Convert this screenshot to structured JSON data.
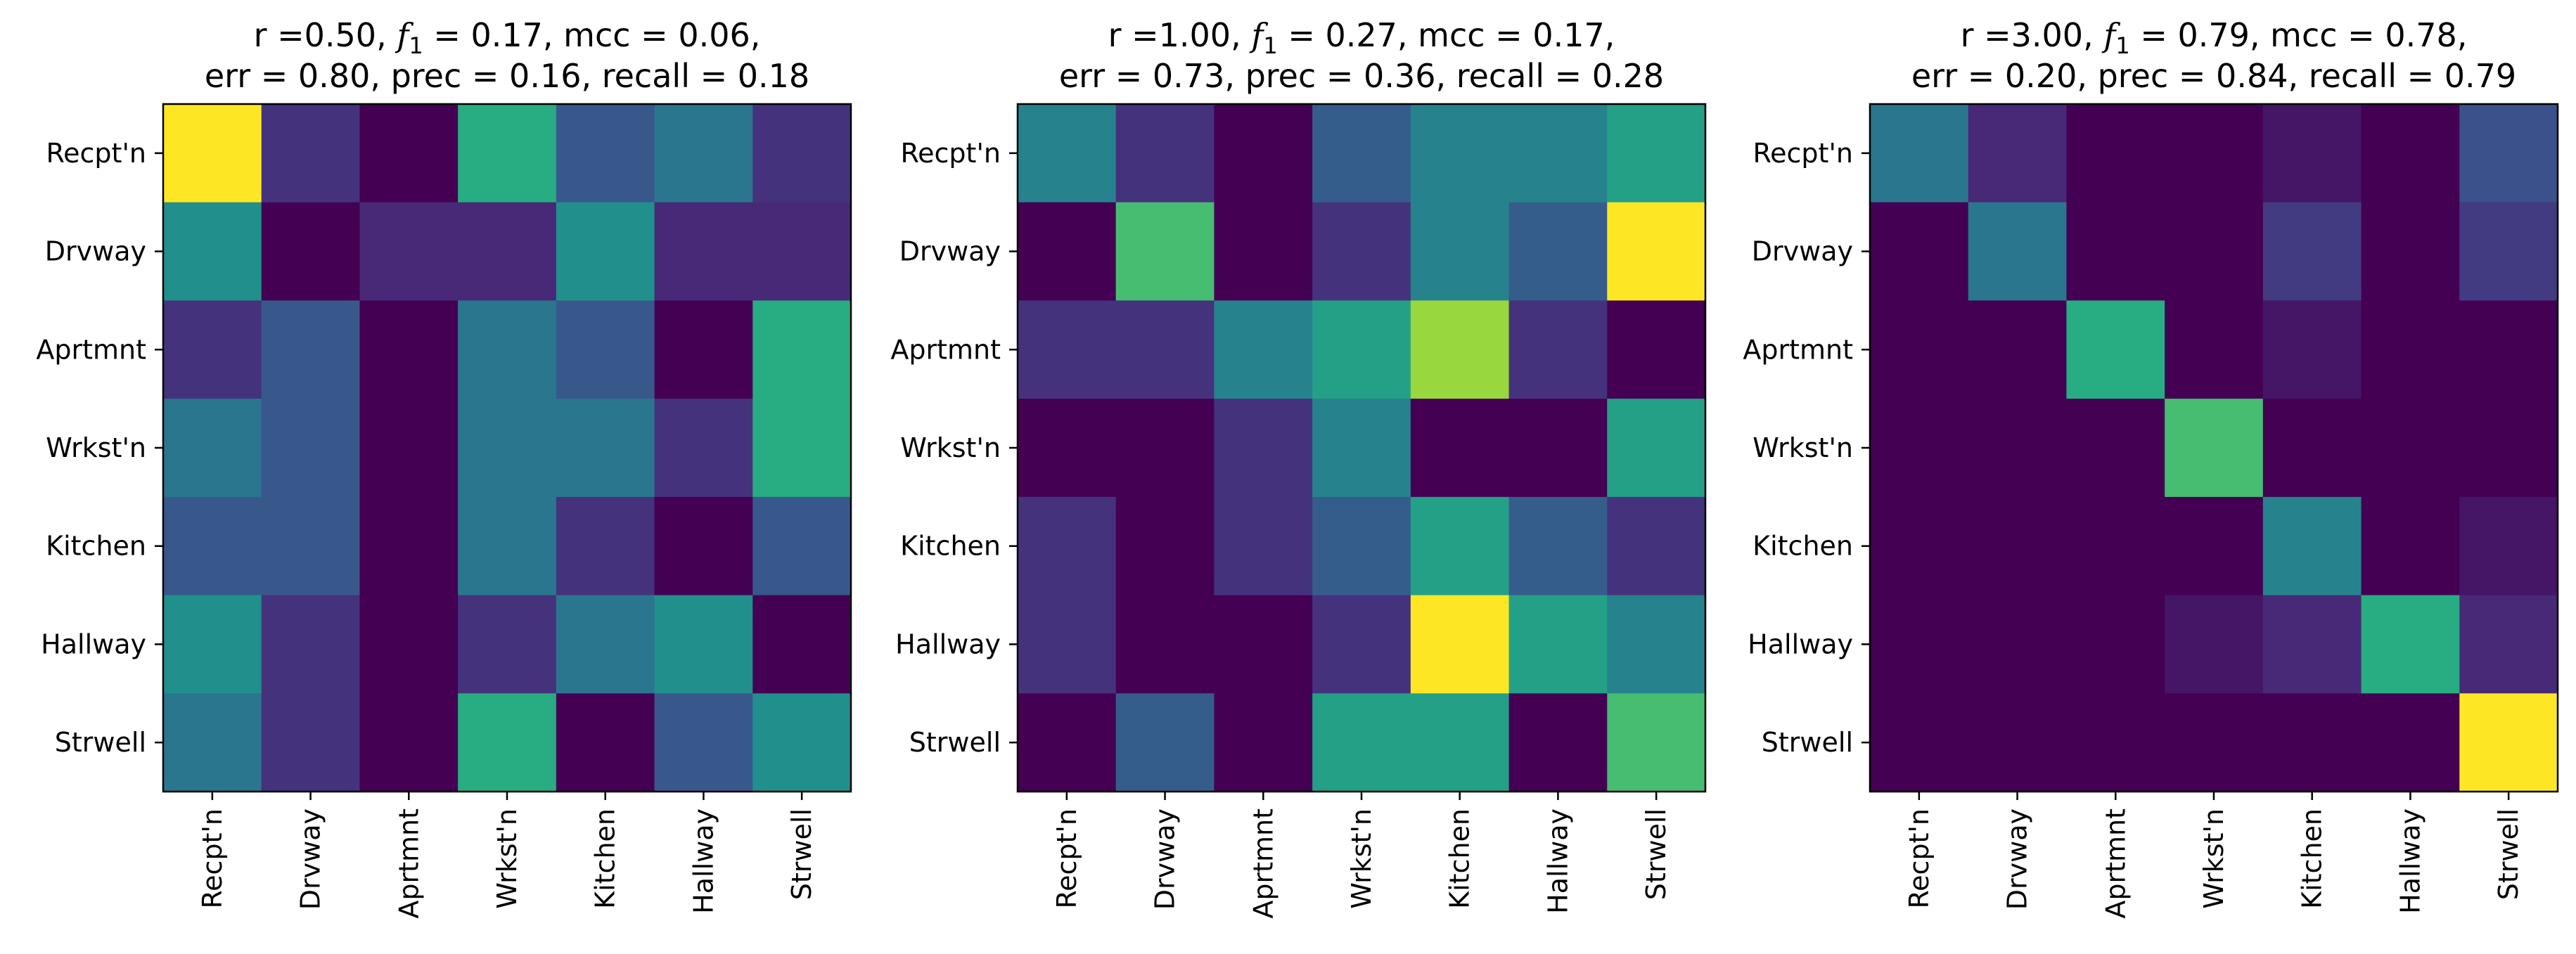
{
  "chart_data": [
    {
      "type": "heatmap",
      "title_line1": {
        "pre": "r =0.50, ",
        "f": "f",
        "sub": "1",
        "post": " = 0.17, mcc = 0.06,"
      },
      "title_line2": "err = 0.80, prec = 0.16, recall = 0.18",
      "row_labels": [
        "Recpt'n",
        "Drvway",
        "Aprtmnt",
        "Wrkst'n",
        "Kitchen",
        "Hallway",
        "Strwell"
      ],
      "col_labels": [
        "Recpt'n",
        "Drvway",
        "Aprtmnt",
        "Wrkst'n",
        "Kitchen",
        "Hallway",
        "Strwell"
      ],
      "colormap": "viridis",
      "matrix": [
        [
          1.0,
          0.15,
          0.0,
          0.63,
          0.28,
          0.4,
          0.15
        ],
        [
          0.5,
          0.0,
          0.12,
          0.12,
          0.5,
          0.12,
          0.12
        ],
        [
          0.15,
          0.28,
          0.0,
          0.4,
          0.28,
          0.0,
          0.63
        ],
        [
          0.4,
          0.28,
          0.0,
          0.4,
          0.4,
          0.15,
          0.63
        ],
        [
          0.28,
          0.28,
          0.0,
          0.4,
          0.15,
          0.0,
          0.28
        ],
        [
          0.5,
          0.15,
          0.0,
          0.15,
          0.4,
          0.5,
          0.0
        ],
        [
          0.4,
          0.15,
          0.0,
          0.63,
          0.0,
          0.28,
          0.5
        ]
      ]
    },
    {
      "type": "heatmap",
      "title_line1": {
        "pre": "r =1.00, ",
        "f": "f",
        "sub": "1",
        "post": " = 0.27, mcc = 0.17,"
      },
      "title_line2": "err = 0.73, prec = 0.36, recall = 0.28",
      "row_labels": [
        "Recpt'n",
        "Drvway",
        "Aprtmnt",
        "Wrkst'n",
        "Kitchen",
        "Hallway",
        "Strwell"
      ],
      "col_labels": [
        "Recpt'n",
        "Drvway",
        "Aprtmnt",
        "Wrkst'n",
        "Kitchen",
        "Hallway",
        "Strwell"
      ],
      "colormap": "viridis",
      "matrix": [
        [
          0.45,
          0.15,
          0.0,
          0.3,
          0.45,
          0.45,
          0.57
        ],
        [
          0.0,
          0.7,
          0.0,
          0.15,
          0.45,
          0.3,
          1.0
        ],
        [
          0.15,
          0.15,
          0.45,
          0.57,
          0.85,
          0.15,
          0.0
        ],
        [
          0.0,
          0.0,
          0.15,
          0.45,
          0.0,
          0.0,
          0.57
        ],
        [
          0.15,
          0.0,
          0.15,
          0.3,
          0.57,
          0.3,
          0.15
        ],
        [
          0.15,
          0.0,
          0.0,
          0.15,
          1.0,
          0.57,
          0.45
        ],
        [
          0.0,
          0.3,
          0.0,
          0.57,
          0.57,
          0.0,
          0.7
        ]
      ]
    },
    {
      "type": "heatmap",
      "title_line1": {
        "pre": "r =3.00, ",
        "f": "f",
        "sub": "1",
        "post": " = 0.79, mcc = 0.78,"
      },
      "title_line2": "err = 0.20, prec = 0.84, recall = 0.79",
      "row_labels": [
        "Recpt'n",
        "Drvway",
        "Aprtmnt",
        "Wrkst'n",
        "Kitchen",
        "Hallway",
        "Strwell"
      ],
      "col_labels": [
        "Recpt'n",
        "Drvway",
        "Aprtmnt",
        "Wrkst'n",
        "Kitchen",
        "Hallway",
        "Strwell"
      ],
      "colormap": "viridis",
      "matrix": [
        [
          0.4,
          0.12,
          0.0,
          0.0,
          0.06,
          0.0,
          0.25
        ],
        [
          0.0,
          0.4,
          0.0,
          0.0,
          0.18,
          0.0,
          0.18
        ],
        [
          0.0,
          0.0,
          0.63,
          0.0,
          0.06,
          0.0,
          0.0
        ],
        [
          0.0,
          0.0,
          0.0,
          0.7,
          0.0,
          0.0,
          0.0
        ],
        [
          0.0,
          0.0,
          0.0,
          0.0,
          0.45,
          0.0,
          0.06
        ],
        [
          0.0,
          0.0,
          0.0,
          0.06,
          0.12,
          0.63,
          0.12
        ],
        [
          0.0,
          0.0,
          0.0,
          0.0,
          0.0,
          0.0,
          1.0
        ]
      ]
    }
  ]
}
